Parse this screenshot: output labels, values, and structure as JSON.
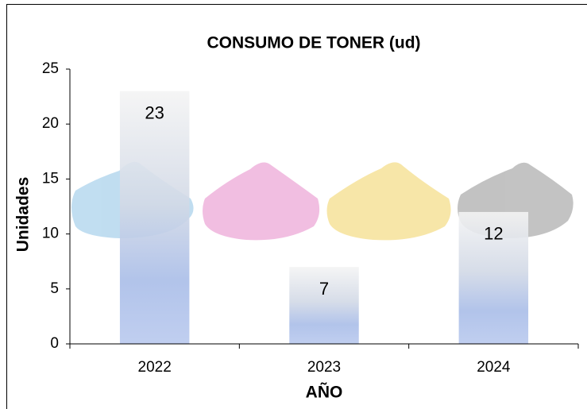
{
  "chart_data": {
    "type": "bar",
    "title": "CONSUMO DE TONER (ud)",
    "x_label": "AÑO",
    "y_label": "Unidades",
    "categories": [
      "2022",
      "2023",
      "2024"
    ],
    "values": [
      23,
      7,
      12
    ],
    "color": "#a9bde8",
    "ylim": [
      0,
      25
    ],
    "yticks": [
      0,
      5,
      10,
      15,
      20,
      25
    ],
    "grid": false
  }
}
